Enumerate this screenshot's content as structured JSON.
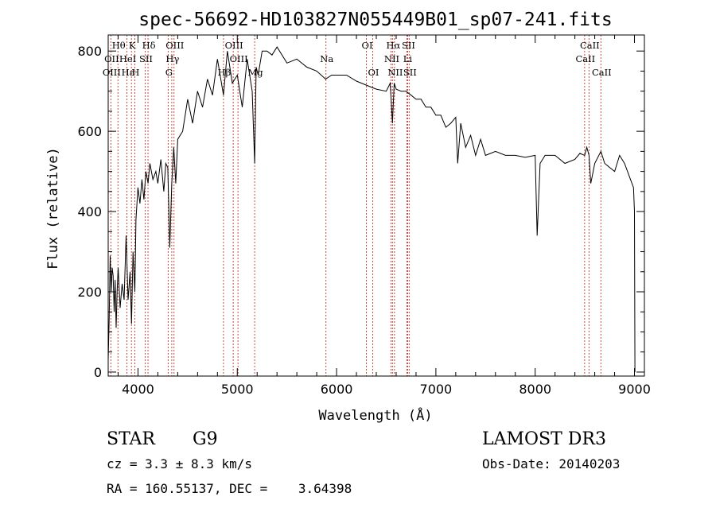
{
  "chart_data": {
    "type": "line",
    "title": "spec-56692-HD103827N055449B01_sp07-241.fits",
    "xlabel": "Wavelength (Å)",
    "ylabel": "Flux (relative)",
    "xlim": [
      3700,
      9100
    ],
    "ylim": [
      -10,
      840
    ],
    "xticks": [
      4000,
      5000,
      6000,
      7000,
      8000,
      9000
    ],
    "yticks": [
      0,
      200,
      400,
      600,
      800
    ],
    "grid": false,
    "series": [
      {
        "x": [
          3700,
          3710,
          3720,
          3730,
          3740,
          3750,
          3760,
          3770,
          3780,
          3790,
          3800,
          3820,
          3840,
          3860,
          3880,
          3900,
          3920,
          3935,
          3950,
          3968,
          3980,
          4000,
          4020,
          4040,
          4060,
          4080,
          4101,
          4120,
          4150,
          4180,
          4200,
          4230,
          4260,
          4280,
          4300,
          4320,
          4340,
          4360,
          4380,
          4400,
          4450,
          4500,
          4550,
          4600,
          4650,
          4700,
          4750,
          4800,
          4861,
          4900,
          4950,
          5000,
          5050,
          5100,
          5150,
          5175,
          5190,
          5210,
          5250,
          5300,
          5350,
          5400,
          5500,
          5600,
          5700,
          5800,
          5890,
          5950,
          6000,
          6100,
          6200,
          6300,
          6400,
          6500,
          6540,
          6563,
          6580,
          6600,
          6650,
          6700,
          6750,
          6800,
          6850,
          6900,
          6950,
          7000,
          7050,
          7100,
          7150,
          7200,
          7220,
          7250,
          7300,
          7350,
          7400,
          7450,
          7500,
          7600,
          7700,
          7800,
          7900,
          8000,
          8020,
          8050,
          8100,
          8200,
          8300,
          8400,
          8450,
          8498,
          8520,
          8542,
          8560,
          8600,
          8662,
          8700,
          8750,
          8800,
          8850,
          8900,
          8960,
          8990,
          9000,
          9005
        ],
        "y": [
          30,
          130,
          290,
          200,
          260,
          240,
          150,
          230,
          110,
          200,
          260,
          160,
          220,
          180,
          340,
          180,
          250,
          120,
          300,
          200,
          380,
          460,
          420,
          480,
          430,
          500,
          470,
          520,
          480,
          500,
          470,
          530,
          450,
          520,
          510,
          310,
          470,
          560,
          470,
          580,
          600,
          680,
          620,
          700,
          660,
          730,
          690,
          780,
          690,
          800,
          720,
          740,
          660,
          780,
          700,
          520,
          760,
          740,
          800,
          800,
          790,
          810,
          770,
          780,
          760,
          750,
          730,
          740,
          740,
          740,
          725,
          715,
          705,
          700,
          720,
          620,
          720,
          705,
          700,
          700,
          690,
          680,
          680,
          660,
          660,
          640,
          640,
          610,
          620,
          635,
          520,
          620,
          560,
          590,
          540,
          580,
          540,
          550,
          540,
          540,
          535,
          540,
          340,
          520,
          540,
          540,
          520,
          530,
          545,
          540,
          560,
          540,
          470,
          520,
          550,
          520,
          510,
          500,
          540,
          520,
          480,
          460,
          400,
          0
        ]
      }
    ],
    "spectral_lines": [
      {
        "label": "Hθ",
        "x": 3798,
        "row": 1
      },
      {
        "label": "K",
        "x": 3934,
        "row": 1
      },
      {
        "label": "Hδ",
        "x": 4101,
        "row": 1
      },
      {
        "label": "OIII",
        "x": 4363,
        "row": 1
      },
      {
        "label": "OIII",
        "x": 4959,
        "row": 1
      },
      {
        "label": "OI",
        "x": 6300,
        "row": 1
      },
      {
        "label": "Hα",
        "x": 6563,
        "row": 1
      },
      {
        "label": "SII",
        "x": 6716,
        "row": 1
      },
      {
        "label": "CaII",
        "x": 8542,
        "row": 1
      },
      {
        "label": "OII",
        "x": 3727,
        "row": 2
      },
      {
        "label": "HeI",
        "x": 3889,
        "row": 2
      },
      {
        "label": "SII",
        "x": 4072,
        "row": 2
      },
      {
        "label": "Hγ",
        "x": 4340,
        "row": 2
      },
      {
        "label": "OIII",
        "x": 5007,
        "row": 2
      },
      {
        "label": "Na",
        "x": 5893,
        "row": 2
      },
      {
        "label": "NII",
        "x": 6548,
        "row": 2
      },
      {
        "label": "Li",
        "x": 6708,
        "row": 2
      },
      {
        "label": "CaII",
        "x": 8498,
        "row": 2
      },
      {
        "label": "OIII",
        "x": 3727,
        "row": 3
      },
      {
        "label": "Hε",
        "x": 3889,
        "row": 3
      },
      {
        "label": "H",
        "x": 3968,
        "row": 3
      },
      {
        "label": "G",
        "x": 4304,
        "row": 3
      },
      {
        "label": "Hβ",
        "x": 4861,
        "row": 3
      },
      {
        "label": "Mg",
        "x": 5175,
        "row": 3
      },
      {
        "label": "OI",
        "x": 6364,
        "row": 3
      },
      {
        "label": "NII",
        "x": 6583,
        "row": 3
      },
      {
        "label": "SII",
        "x": 6731,
        "row": 3
      },
      {
        "label": "CaII",
        "x": 8662,
        "row": 3
      }
    ]
  },
  "info": {
    "object_class": "STAR",
    "subclass": "G9",
    "cz": "cz = 3.3 ± 8.3 km/s",
    "radec": "RA = 160.55137, DEC =    3.64398",
    "survey": "LAMOST DR3",
    "obs_date": "Obs-Date: 20140203"
  }
}
